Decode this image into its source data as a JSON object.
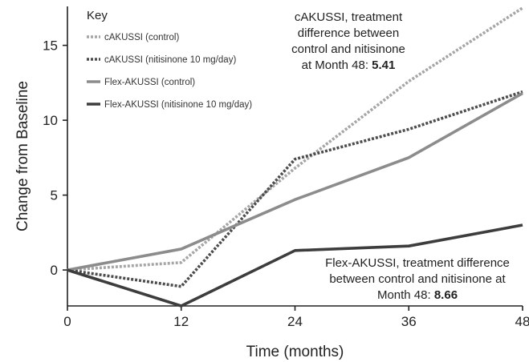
{
  "chart_data": {
    "type": "line",
    "x": [
      0,
      12,
      24,
      36,
      48
    ],
    "xlabel": "Time (months)",
    "ylabel": "Change from Baseline",
    "xlim": [
      0,
      48
    ],
    "ylim": [
      -2.4,
      17.6
    ],
    "x_ticks": [
      0,
      12,
      24,
      36,
      48
    ],
    "y_ticks": [
      0,
      5,
      10,
      15
    ],
    "grid": false,
    "legend_title": "Key",
    "legend_position": "top-left",
    "series": [
      {
        "name": "cAKUSSI (control)",
        "values": [
          0,
          0.5,
          6.8,
          12.6,
          17.5
        ],
        "color": "#a6a6a6",
        "dash": "dotted"
      },
      {
        "name": "cAKUSSI (nitisinone 10 mg/day)",
        "values": [
          0,
          -1.1,
          7.4,
          9.4,
          11.9
        ],
        "color": "#4d4d4d",
        "dash": "dotted"
      },
      {
        "name": "Flex-AKUSSI (control)",
        "values": [
          0,
          1.4,
          4.7,
          7.5,
          11.8
        ],
        "color": "#8c8c8c",
        "dash": "solid"
      },
      {
        "name": "Flex-AKUSSI (nitisinone 10 mg/day)",
        "values": [
          0,
          -2.4,
          1.3,
          1.6,
          3.0
        ],
        "color": "#3d3d3d",
        "dash": "solid"
      }
    ],
    "annotations": [
      {
        "lines": [
          "cAKUSSI, treatment",
          "difference between",
          "control and nitisinone",
          "at Month 48: "
        ],
        "value": "5.41",
        "position": "top-right"
      },
      {
        "lines": [
          "Flex-AKUSSI, treatment difference",
          "between control and nitisinone at",
          "Month 48: "
        ],
        "value": "8.66",
        "position": "bottom-right"
      }
    ]
  }
}
